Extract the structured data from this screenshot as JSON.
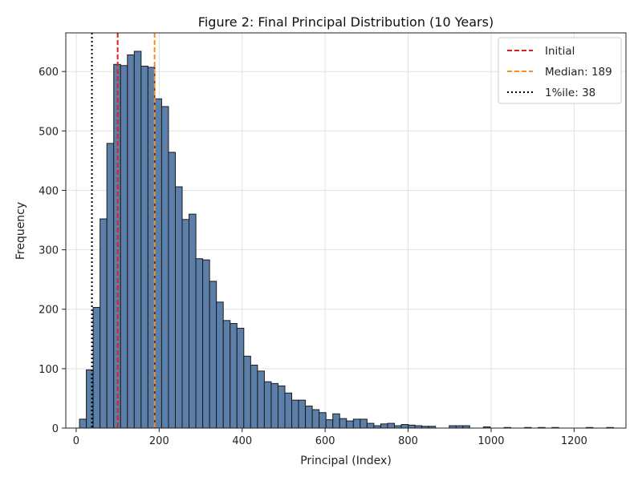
{
  "chart_data": {
    "type": "bar",
    "title": "Figure 2: Final Principal Distribution (10 Years)",
    "xlabel": "Principal (Index)",
    "ylabel": "Frequency",
    "xlim": [
      -25,
      1325
    ],
    "ylim": [
      0,
      665
    ],
    "xticks": [
      0,
      200,
      400,
      600,
      800,
      1000,
      1200
    ],
    "yticks": [
      0,
      100,
      200,
      300,
      400,
      500,
      600
    ],
    "grid": true,
    "legend_position": "top-right",
    "bar_color": "#5b7fa8",
    "bar_edge_color": "#1a1a1a",
    "bin_width": 16.5,
    "bin_start": 8,
    "values": [
      15,
      98,
      203,
      352,
      479,
      612,
      610,
      628,
      634,
      609,
      607,
      554,
      541,
      464,
      406,
      351,
      360,
      285,
      283,
      247,
      212,
      181,
      176,
      168,
      121,
      106,
      96,
      78,
      75,
      71,
      59,
      47,
      47,
      37,
      31,
      26,
      14,
      24,
      16,
      12,
      15,
      15,
      8,
      4,
      7,
      8,
      4,
      6,
      5,
      4,
      3,
      3,
      0,
      0,
      4,
      4,
      4,
      0,
      0,
      2,
      0,
      0,
      1,
      0,
      0,
      1,
      0,
      1,
      0,
      1,
      0,
      0,
      0,
      0,
      1,
      0,
      0,
      1
    ],
    "reference_lines": [
      {
        "label": "Initial",
        "x": 100,
        "color": "#e31a1c",
        "style": "dashed"
      },
      {
        "label": "Median: 189",
        "x": 189,
        "color": "#ff8c1a",
        "style": "dashed"
      },
      {
        "label": "1%ile: 38",
        "x": 38,
        "color": "#000000",
        "style": "dotted"
      }
    ]
  }
}
